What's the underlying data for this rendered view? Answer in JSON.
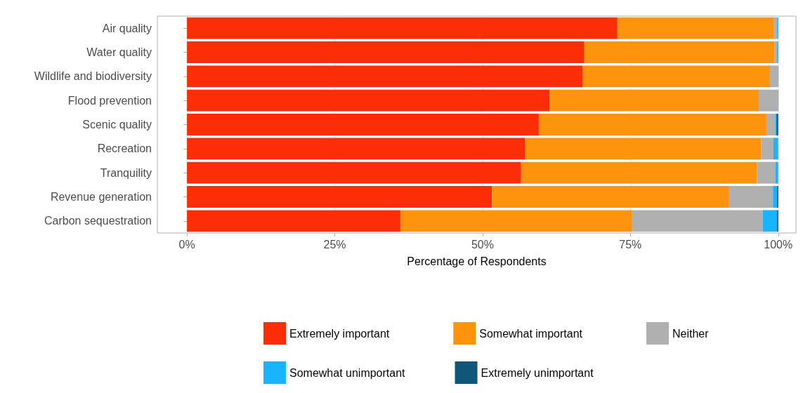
{
  "chart_data": {
    "type": "bar",
    "orientation": "horizontal",
    "stacked": true,
    "xlabel": "Percentage of Respondents",
    "categories": [
      "Air quality",
      "Water quality",
      "Wildlife and biodiversity",
      "Flood prevention",
      "Scenic quality",
      "Recreation",
      "Tranquility",
      "Revenue generation",
      "Carbon sequestration"
    ],
    "series": [
      {
        "name": "Extremely important",
        "color": "#fc2d07",
        "values": [
          72.8,
          67.2,
          66.9,
          61.3,
          59.5,
          57.2,
          56.5,
          51.6,
          36.1
        ]
      },
      {
        "name": "Somewhat important",
        "color": "#fe930e",
        "values": [
          26.4,
          32.2,
          31.7,
          35.4,
          38.5,
          39.9,
          39.9,
          40.1,
          39.2
        ]
      },
      {
        "name": "Neither",
        "color": "#b0b0b0",
        "values": [
          0.6,
          0.4,
          1.3,
          3.2,
          1.5,
          2.1,
          3.1,
          7.4,
          22.1
        ]
      },
      {
        "name": "Somewhat unimportant",
        "color": "#1ab3ff",
        "values": [
          0.2,
          0.2,
          0.1,
          0.1,
          0.2,
          0.8,
          0.5,
          0.7,
          2.4
        ]
      },
      {
        "name": "Extremely unimportant",
        "color": "#0f567a",
        "values": [
          0,
          0,
          0,
          0,
          0.3,
          0,
          0,
          0.2,
          0.2
        ]
      }
    ],
    "xlim": [
      -5,
      103
    ],
    "xticks": [
      {
        "value": 0,
        "label": "0%"
      },
      {
        "value": 25,
        "label": "25%"
      },
      {
        "value": 50,
        "label": "50%"
      },
      {
        "value": 75,
        "label": "75%"
      },
      {
        "value": 100,
        "label": "100%"
      }
    ],
    "grid": "x",
    "legend": "bottom"
  }
}
